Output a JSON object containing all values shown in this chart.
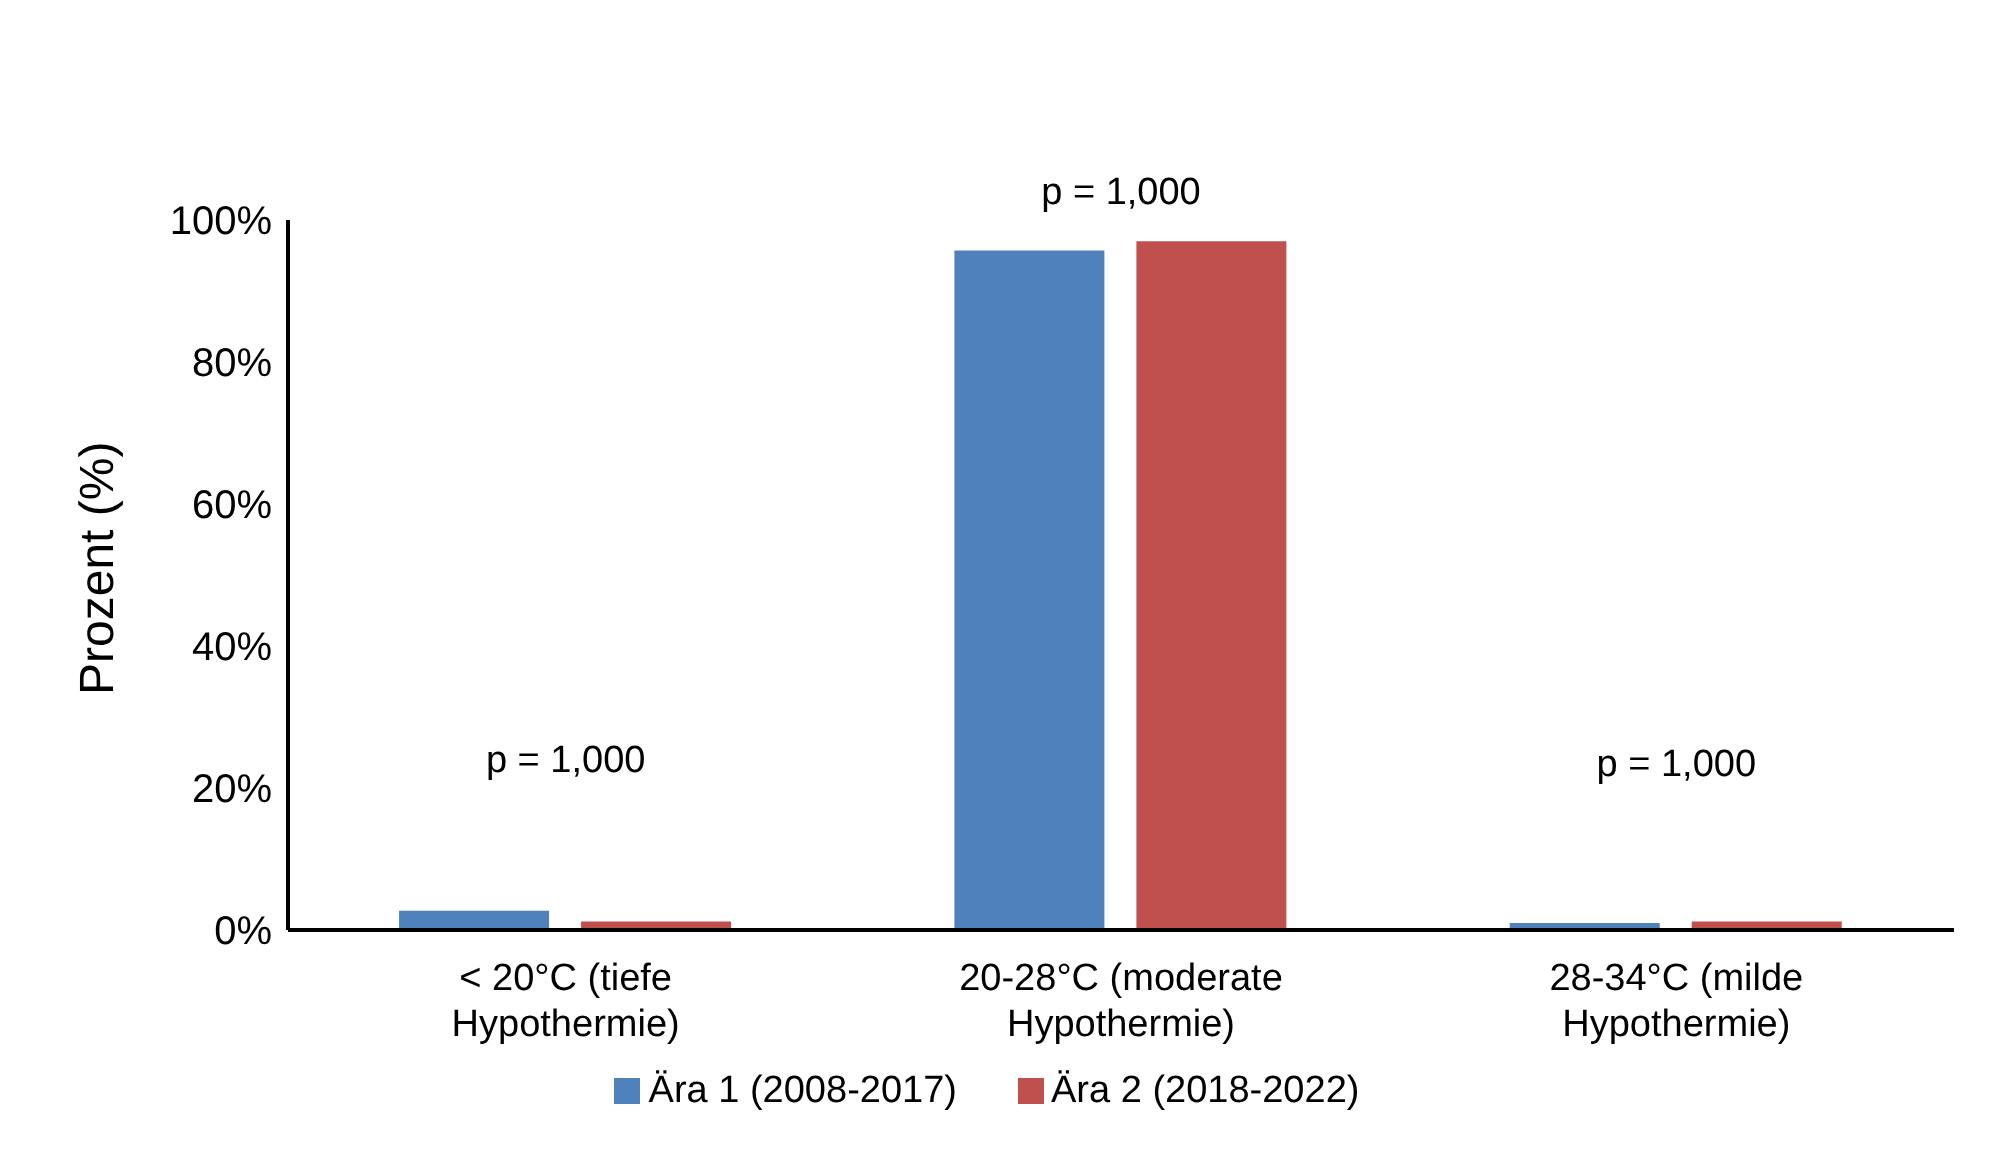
{
  "chart_data": {
    "type": "bar",
    "ylabel": "Prozent (%)",
    "categories": [
      "< 20°C (tiefe Hypothermie)",
      "20-28°C (moderate Hypothermie)",
      "28-34°C (milde Hypothermie)"
    ],
    "series": [
      {
        "name": "Ära 1 (2008-2017)",
        "color": "#4f81bd",
        "values": [
          2.7,
          95.7,
          1.0
        ]
      },
      {
        "name": "Ära 2 (2018-2022)",
        "color": "#c0504d",
        "values": [
          1.2,
          97.0,
          1.2
        ]
      }
    ],
    "ylim": [
      0,
      100
    ],
    "yticks": [
      {
        "value": 0,
        "label": "0%"
      },
      {
        "value": 20,
        "label": "20%"
      },
      {
        "value": 40,
        "label": "40%"
      },
      {
        "value": 60,
        "label": "60%"
      },
      {
        "value": 80,
        "label": "80%"
      },
      {
        "value": 100,
        "label": "100%"
      }
    ],
    "annotations": [
      "p = 1,000",
      "p = 1,000",
      "p = 1,000"
    ],
    "legend": "bottom",
    "grid": false
  }
}
